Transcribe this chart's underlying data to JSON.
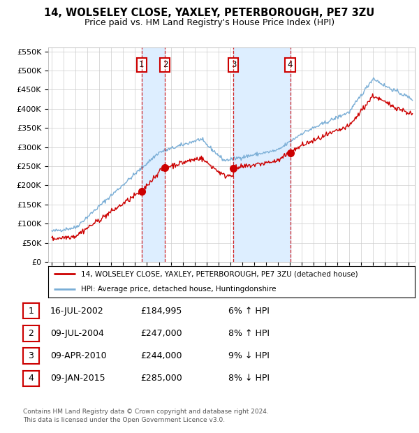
{
  "title": "14, WOLSELEY CLOSE, YAXLEY, PETERBOROUGH, PE7 3ZU",
  "subtitle": "Price paid vs. HM Land Registry's House Price Index (HPI)",
  "legend_label_red": "14, WOLSELEY CLOSE, YAXLEY, PETERBOROUGH, PE7 3ZU (detached house)",
  "legend_label_blue": "HPI: Average price, detached house, Huntingdonshire",
  "footer": "Contains HM Land Registry data © Crown copyright and database right 2024.\nThis data is licensed under the Open Government Licence v3.0.",
  "sales": [
    {
      "num": 1,
      "date": "16-JUL-2002",
      "price": 184995,
      "pct": "6%",
      "dir": "↑"
    },
    {
      "num": 2,
      "date": "09-JUL-2004",
      "price": 247000,
      "pct": "8%",
      "dir": "↑"
    },
    {
      "num": 3,
      "date": "09-APR-2010",
      "price": 244000,
      "pct": "9%",
      "dir": "↓"
    },
    {
      "num": 4,
      "date": "09-JAN-2015",
      "price": 285000,
      "pct": "8%",
      "dir": "↓"
    }
  ],
  "sale_years": [
    2002.54,
    2004.52,
    2010.27,
    2015.03
  ],
  "sale_prices": [
    184995,
    247000,
    244000,
    285000
  ],
  "ylim": [
    0,
    560000
  ],
  "xlim_start": 1994.7,
  "xlim_end": 2025.5,
  "red_color": "#cc0000",
  "blue_color": "#7aaed6",
  "shade_color": "#ddeeff",
  "background_color": "#ffffff",
  "grid_color": "#cccccc",
  "yticks": [
    0,
    50000,
    100000,
    150000,
    200000,
    250000,
    300000,
    350000,
    400000,
    450000,
    500000,
    550000
  ],
  "ylabels": [
    "£0",
    "£50K",
    "£100K",
    "£150K",
    "£200K",
    "£250K",
    "£300K",
    "£350K",
    "£400K",
    "£450K",
    "£500K",
    "£550K"
  ],
  "xticks": [
    1995,
    1996,
    1997,
    1998,
    1999,
    2000,
    2001,
    2002,
    2003,
    2004,
    2005,
    2006,
    2007,
    2008,
    2009,
    2010,
    2011,
    2012,
    2013,
    2014,
    2015,
    2016,
    2017,
    2018,
    2019,
    2020,
    2021,
    2022,
    2023,
    2024,
    2025
  ]
}
